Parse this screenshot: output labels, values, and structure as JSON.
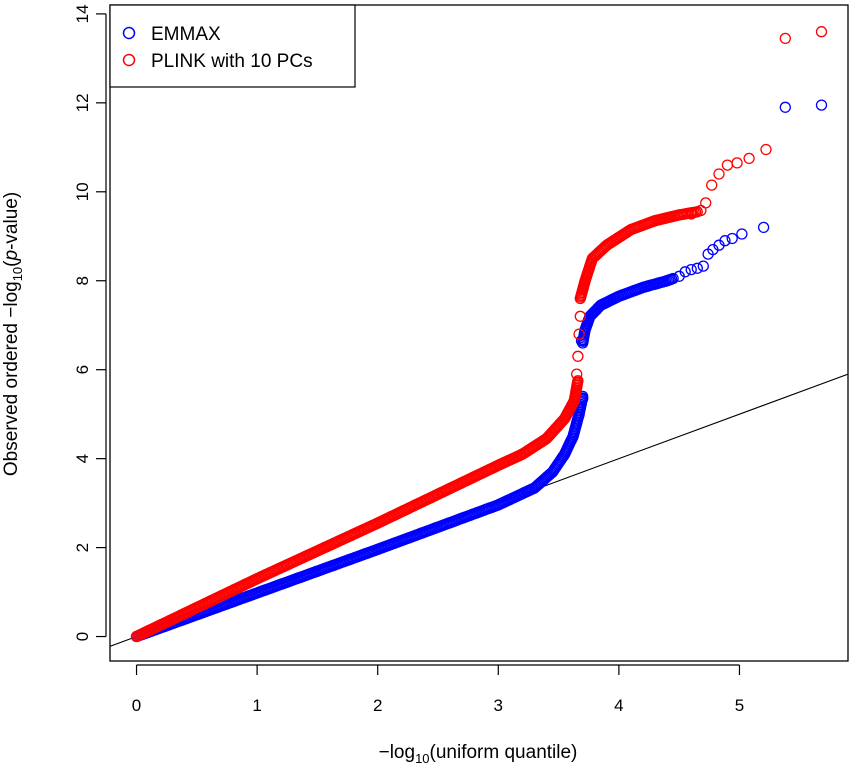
{
  "chart_data": {
    "type": "scatter",
    "xlabel": {
      "prefix": "−log",
      "sub": "10",
      "suffix": "(uniform quantile)"
    },
    "ylabel": {
      "prefix": "Observed ordered  −log",
      "sub": "10",
      "mid": "(",
      "italic": "p",
      "suffix": "-value)"
    },
    "xlim": [
      -0.22,
      5.9
    ],
    "ylim": [
      -0.55,
      14.2
    ],
    "xticks": [
      0,
      1,
      2,
      3,
      4,
      5
    ],
    "xtick_labels": [
      "0",
      "1",
      "2",
      "3",
      "4",
      "5"
    ],
    "yticks": [
      0,
      2,
      4,
      6,
      8,
      10,
      12,
      14
    ],
    "ytick_labels": [
      "0",
      "2",
      "4",
      "6",
      "8",
      "10",
      "12",
      "14"
    ],
    "grid": false,
    "legend_position": "top-left",
    "reference_line": {
      "slope": 1,
      "intercept": 0
    },
    "series": [
      {
        "name": "EMMAX",
        "color": "#0000ff",
        "marker": "open-circle",
        "dense_segments": [
          [
            [
              0.0,
              0.0
            ],
            [
              1.0,
              0.98
            ],
            [
              2.0,
              1.96
            ],
            [
              3.0,
              2.96
            ],
            [
              3.3,
              3.34
            ],
            [
              3.45,
              3.7
            ],
            [
              3.55,
              4.1
            ],
            [
              3.62,
              4.5
            ],
            [
              3.67,
              5.0
            ],
            [
              3.7,
              5.4
            ]
          ],
          [
            [
              3.7,
              6.6
            ],
            [
              3.72,
              6.9
            ],
            [
              3.76,
              7.2
            ],
            [
              3.85,
              7.45
            ],
            [
              4.0,
              7.65
            ],
            [
              4.2,
              7.85
            ],
            [
              4.4,
              8.0
            ],
            [
              4.45,
              8.05
            ]
          ]
        ],
        "points": [
          [
            3.68,
            5.15
          ],
          [
            3.7,
            5.35
          ],
          [
            3.69,
            6.65
          ],
          [
            4.5,
            8.1
          ],
          [
            4.55,
            8.2
          ],
          [
            4.6,
            8.25
          ],
          [
            4.65,
            8.28
          ],
          [
            4.7,
            8.33
          ],
          [
            4.74,
            8.6
          ],
          [
            4.78,
            8.7
          ],
          [
            4.83,
            8.8
          ],
          [
            4.88,
            8.9
          ],
          [
            4.94,
            8.95
          ],
          [
            5.02,
            9.05
          ],
          [
            5.2,
            9.2
          ],
          [
            5.38,
            11.9
          ],
          [
            5.68,
            11.95
          ]
        ]
      },
      {
        "name": "PLINK with 10 PCs",
        "color": "#ff0000",
        "marker": "open-circle",
        "dense_segments": [
          [
            [
              0.0,
              0.0
            ],
            [
              1.0,
              1.3
            ],
            [
              2.0,
              2.55
            ],
            [
              3.0,
              3.85
            ],
            [
              3.2,
              4.1
            ],
            [
              3.4,
              4.45
            ],
            [
              3.55,
              4.9
            ],
            [
              3.63,
              5.3
            ],
            [
              3.66,
              5.75
            ]
          ],
          [
            [
              3.68,
              7.6
            ],
            [
              3.72,
              8.0
            ],
            [
              3.78,
              8.5
            ],
            [
              3.9,
              8.8
            ],
            [
              4.1,
              9.15
            ],
            [
              4.3,
              9.35
            ],
            [
              4.5,
              9.48
            ],
            [
              4.65,
              9.55
            ]
          ]
        ],
        "points": [
          [
            3.65,
            5.9
          ],
          [
            3.66,
            6.3
          ],
          [
            3.67,
            6.8
          ],
          [
            3.68,
            7.2
          ],
          [
            4.6,
            9.5
          ],
          [
            4.68,
            9.58
          ],
          [
            4.72,
            9.75
          ],
          [
            4.77,
            10.15
          ],
          [
            4.83,
            10.4
          ],
          [
            4.9,
            10.6
          ],
          [
            4.98,
            10.65
          ],
          [
            5.08,
            10.75
          ],
          [
            5.22,
            10.95
          ],
          [
            5.38,
            13.45
          ],
          [
            5.68,
            13.6
          ]
        ]
      }
    ]
  }
}
